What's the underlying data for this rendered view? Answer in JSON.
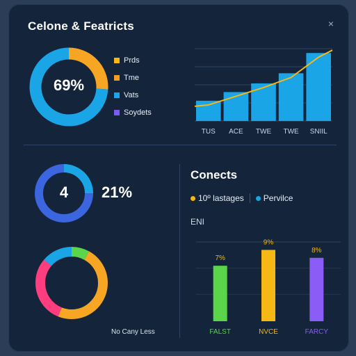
{
  "header": {
    "title": "Celone & Featricts",
    "close_glyph": "×"
  },
  "donut_main": {
    "center_label": "69%",
    "segments": [
      {
        "color": "#f6a623",
        "fraction": 0.26
      },
      {
        "color": "#1aa6e6",
        "fraction": 0.74
      }
    ]
  },
  "legend": [
    {
      "label": "Prds",
      "color": "#f5b814"
    },
    {
      "label": "Tme",
      "color": "#f59a23"
    },
    {
      "label": "Vats",
      "color": "#1aa6e6"
    },
    {
      "label": "Soydets",
      "color": "#7a5cf0"
    }
  ],
  "chart_data": [
    {
      "type": "area",
      "categories": [
        "TUS",
        "ACE",
        "TWE",
        "TWE",
        "SNIIL"
      ],
      "values": [
        1.4,
        2.0,
        2.6,
        3.3,
        4.7
      ],
      "line_color": "#f5b814",
      "fill_color": "#1aa6e6",
      "grid": true
    },
    {
      "type": "bar",
      "categories": [
        "FALST",
        "NVCE",
        "FARCY"
      ],
      "values": [
        7,
        9,
        8
      ],
      "value_labels": [
        "7%",
        "9%",
        "8%"
      ],
      "colors": [
        "#5bd64a",
        "#f5b814",
        "#8b5cf6"
      ],
      "grid": true
    }
  ],
  "donut_small": {
    "center_label": "4",
    "side_label": "21%",
    "segments": [
      {
        "color": "#1aa6e6",
        "fraction": 0.25
      },
      {
        "color": "#3b66e0",
        "fraction": 0.75
      }
    ]
  },
  "donut_bottom": {
    "segments": [
      {
        "color": "#5bd64a",
        "fraction": 0.08
      },
      {
        "color": "#f6a623",
        "fraction": 0.48
      },
      {
        "color": "#ff3d7f",
        "fraction": 0.3
      },
      {
        "color": "#1aa6e6",
        "fraction": 0.14
      }
    ]
  },
  "right_panel": {
    "title": "Conects",
    "legend_a": "10º lastages",
    "legend_a_color": "#f5b814",
    "legend_b": "Pervilce",
    "legend_b_color": "#1aa6e6",
    "unit_label": "ENI"
  },
  "bottom_caption": "No Cany Less"
}
